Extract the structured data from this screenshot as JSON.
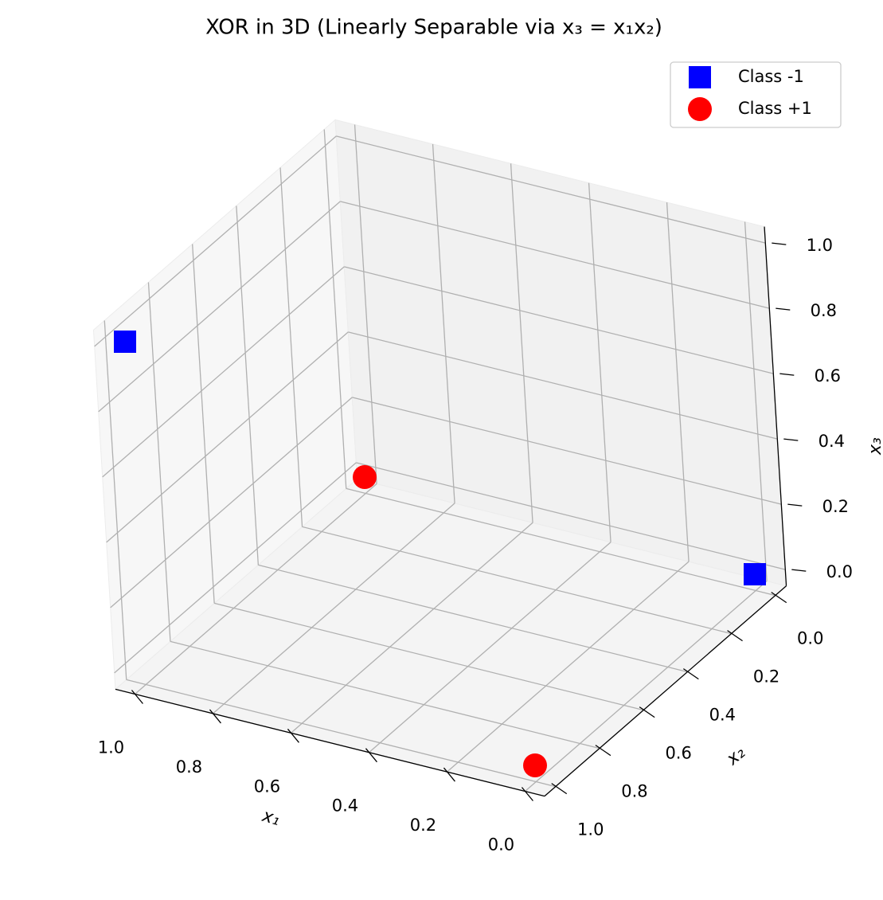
{
  "chart_data": {
    "type": "scatter3d",
    "title": "XOR in 3D (Linearly Separable via x₃ = x₁x₂)",
    "x_label": "x₁",
    "y_label": "x₂",
    "z_label": "x₃",
    "series": [
      {
        "name": "Class -1",
        "color": "#0000ff",
        "marker": "square",
        "x1": [
          0,
          1
        ],
        "x2": [
          0,
          1
        ],
        "x3": [
          0,
          1
        ]
      },
      {
        "name": "Class +1",
        "color": "#ff0000",
        "marker": "circle",
        "x1": [
          1,
          0
        ],
        "x2": [
          0,
          1
        ],
        "x3": [
          0,
          0
        ]
      }
    ],
    "xlim": [
      -0.05,
      1.05
    ],
    "ylim": [
      -0.05,
      1.05
    ],
    "zlim": [
      -0.05,
      1.05
    ],
    "xticks": [
      {
        "value": 0,
        "label": "0.0"
      },
      0.2,
      0.4,
      0.6,
      0.8,
      {
        "value": 1,
        "label": "1.0"
      }
    ],
    "yticks": [
      {
        "value": 0,
        "label": "0.0"
      },
      0.2,
      0.4,
      0.6,
      0.8,
      {
        "value": 1,
        "label": "1.0"
      }
    ],
    "zticks": [
      {
        "value": 0,
        "label": "0.0"
      },
      0.2,
      0.4,
      0.6,
      0.8,
      {
        "value": 1,
        "label": "1.0"
      }
    ],
    "grid": true,
    "legend": "upper right"
  }
}
